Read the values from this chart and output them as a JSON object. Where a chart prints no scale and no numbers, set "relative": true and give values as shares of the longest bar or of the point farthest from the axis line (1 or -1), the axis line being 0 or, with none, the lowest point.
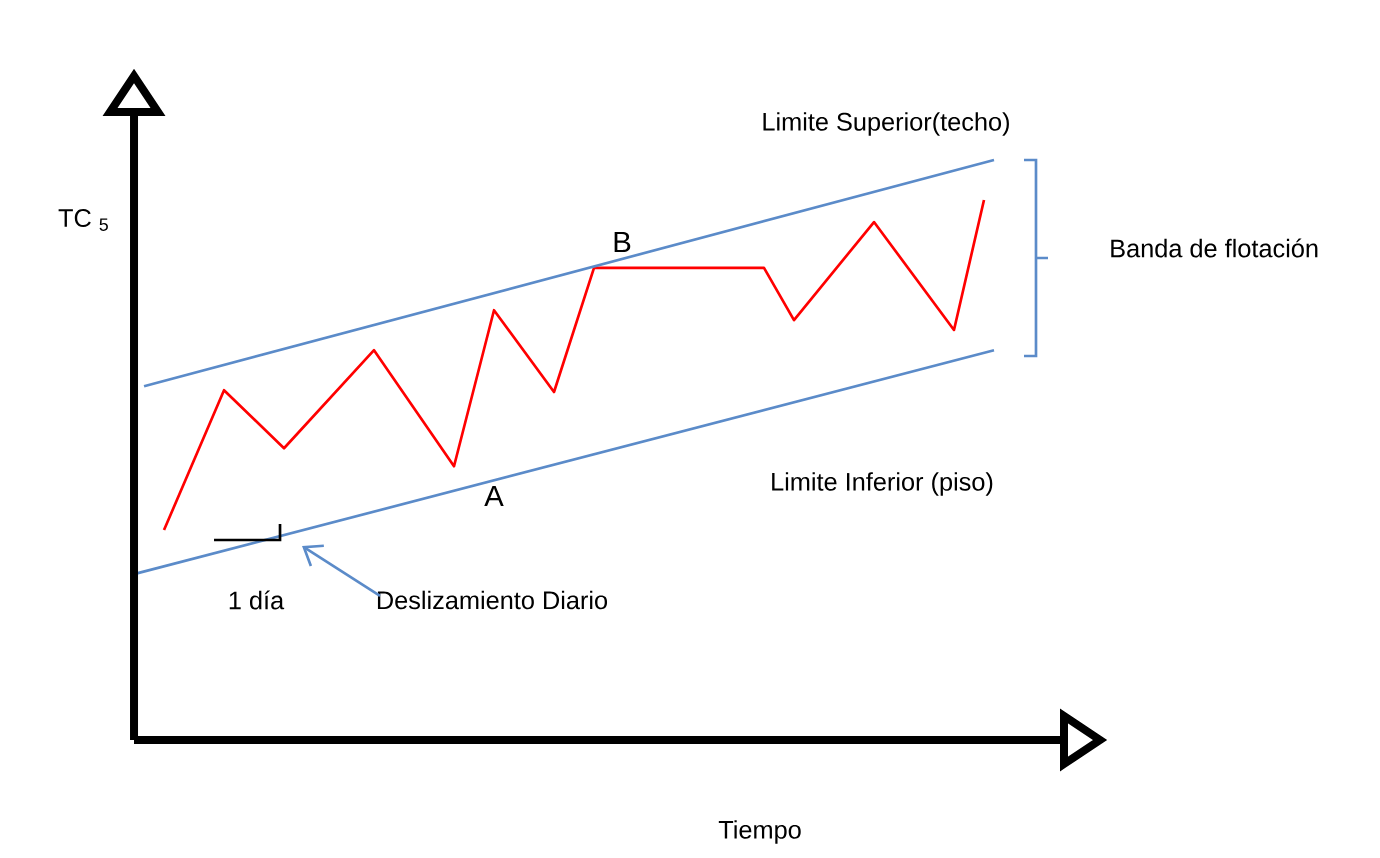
{
  "chart_data": {
    "type": "line",
    "relative": true,
    "xlabel": "Tiempo",
    "ylabel": "TC $_{5}$",
    "categories": [
      null,
      null,
      null,
      null,
      null,
      null,
      null,
      null,
      null,
      null,
      null,
      null,
      null,
      null,
      null,
      null,
      null,
      null,
      null,
      null,
      null,
      null,
      null,
      null,
      null,
      null,
      null,
      null,
      null,
      null,
      null,
      null,
      null,
      null,
      null,
      null,
      null,
      null,
      null,
      null,
      null,
      null,
      null,
      null,
      null,
      null,
      null,
      null,
      null,
      null,
      null,
      null,
      null,
      null,
      null,
      null,
      null,
      null,
      null,
      null,
      null,
      null,
      null,
      null,
      null,
      null,
      null,
      null,
      null,
      null,
      null,
      null,
      null,
      null,
      null,
      null,
      null,
      null,
      null,
      null,
      null,
      null,
      null,
      null,
      null,
      null,
      null
    ],
    "annotations": [
      "Limite Superior(techo)",
      "Limite Inferior (piso)",
      "Banda de flotación",
      "A",
      "B",
      "1 día",
      "Deslizamiento Diario"
    ],
    "series": [
      {
        "color": "#ff0000",
        "values": [
          null,
          null,
          null,
          0.362,
          null,
          null,
          null,
          null,
          null,
          0.603,
          null,
          null,
          null,
          null,
          null,
          0.503,
          null,
          null,
          null,
          null,
          null,
          null,
          null,
          null,
          0.672,
          null,
          null,
          null,
          null,
          null,
          null,
          null,
          0.472,
          null,
          null,
          null,
          0.741,
          null,
          null,
          null,
          null,
          null,
          0.6,
          null,
          null,
          null,
          0.814,
          null,
          null,
          null,
          null,
          null,
          null,
          null,
          null,
          null,
          null,
          null,
          null,
          null,
          null,
          null,
          null,
          0.814,
          null,
          null,
          0.724,
          null,
          null,
          null,
          null,
          null,
          null,
          null,
          0.893,
          null,
          null,
          null,
          null,
          null,
          null,
          null,
          0.707,
          null,
          null,
          0.931,
          null
        ]
      },
      {
        "color": "#5b8bc9",
        "values": [
          null,
          0.61,
          null,
          null,
          null,
          null,
          null,
          null,
          null,
          null,
          null,
          null,
          null,
          null,
          null,
          null,
          null,
          null,
          null,
          null,
          null,
          null,
          null,
          null,
          null,
          null,
          null,
          null,
          null,
          null,
          null,
          null,
          null,
          null,
          null,
          null,
          null,
          null,
          null,
          null,
          null,
          null,
          null,
          null,
          null,
          null,
          null,
          null,
          null,
          null,
          null,
          null,
          null,
          null,
          null,
          null,
          null,
          null,
          null,
          null,
          null,
          null,
          null,
          null,
          null,
          null,
          null,
          null,
          null,
          null,
          null,
          null,
          null,
          null,
          null,
          null,
          null,
          null,
          null,
          null,
          null,
          null,
          null,
          null,
          null,
          null,
          1
        ]
      },
      {
        "color": "#5b8bc9",
        "values": [
          0.286,
          null,
          null,
          null,
          null,
          null,
          null,
          null,
          null,
          null,
          null,
          null,
          null,
          null,
          null,
          null,
          null,
          null,
          null,
          null,
          null,
          null,
          null,
          null,
          null,
          null,
          null,
          null,
          null,
          null,
          null,
          null,
          null,
          null,
          null,
          null,
          null,
          null,
          null,
          null,
          null,
          null,
          null,
          null,
          null,
          null,
          null,
          null,
          null,
          null,
          null,
          null,
          null,
          null,
          null,
          null,
          null,
          null,
          null,
          null,
          null,
          null,
          null,
          null,
          null,
          null,
          null,
          null,
          null,
          null,
          null,
          null,
          null,
          null,
          null,
          null,
          null,
          null,
          null,
          null,
          null,
          null,
          null,
          null,
          null,
          null,
          0.672
        ]
      }
    ]
  }
}
